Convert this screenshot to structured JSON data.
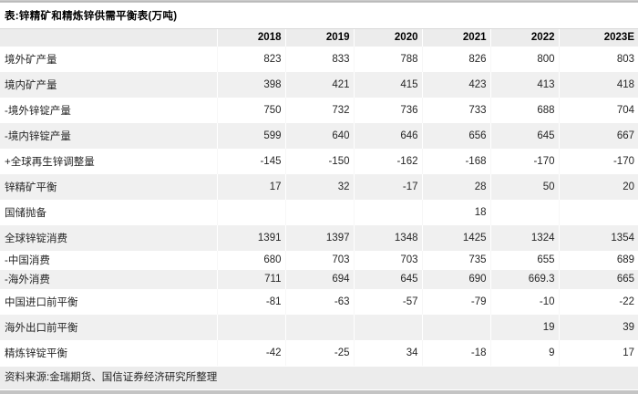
{
  "title": "表:锌精矿和精炼锌供需平衡表(万吨)",
  "footer": {
    "source_note": "资料来源:金瑞期货、国信证券经济研究所整理"
  },
  "colors": {
    "stripe": "#f0f0f0",
    "header_bg": "#ececec",
    "footer_bg": "#ececec",
    "bar_top": "#b5b5b5",
    "bar_bottom": "#c4c4c4",
    "text": "#262626"
  },
  "chart_data": {
    "type": "table",
    "title": "表:锌精矿和精炼锌供需平衡表(万吨)",
    "columns": [
      "2018",
      "2019",
      "2020",
      "2021",
      "2022",
      "2023E"
    ],
    "rows": [
      {
        "label": "境外矿产量",
        "values": [
          "823",
          "833",
          "788",
          "826",
          "800",
          "803"
        ]
      },
      {
        "label": "境内矿产量",
        "values": [
          "398",
          "421",
          "415",
          "423",
          "413",
          "418"
        ]
      },
      {
        "label": "-境外锌锭产量",
        "values": [
          "750",
          "732",
          "736",
          "733",
          "688",
          "704"
        ]
      },
      {
        "label": "-境内锌锭产量",
        "values": [
          "599",
          "640",
          "646",
          "656",
          "645",
          "667"
        ]
      },
      {
        "label": "+全球再生锌调整量",
        "values": [
          "-145",
          "-150",
          "-162",
          "-168",
          "-170",
          "-170"
        ]
      },
      {
        "label": "锌精矿平衡",
        "values": [
          "17",
          "32",
          "-17",
          "28",
          "50",
          "20"
        ]
      },
      {
        "label": "国储抛备",
        "values": [
          "",
          "",
          "",
          "18",
          "",
          ""
        ]
      },
      {
        "label": "全球锌锭消费",
        "values": [
          "1391",
          "1397",
          "1348",
          "1425",
          "1324",
          "1354"
        ]
      },
      {
        "label": "-中国消费",
        "values": [
          "680",
          "703",
          "703",
          "735",
          "655",
          "689"
        ]
      },
      {
        "label": "-海外消费",
        "values": [
          "711",
          "694",
          "645",
          "690",
          "669.3",
          "665"
        ]
      },
      {
        "label": "中国进口前平衡",
        "values": [
          "-81",
          "-63",
          "-57",
          "-79",
          "-10",
          "-22"
        ]
      },
      {
        "label": "海外出口前平衡",
        "values": [
          "",
          "",
          "",
          "",
          "19",
          "39"
        ]
      },
      {
        "label": "精炼锌锭平衡",
        "values": [
          "-42",
          "-25",
          "34",
          "-18",
          "9",
          "17"
        ]
      }
    ]
  }
}
